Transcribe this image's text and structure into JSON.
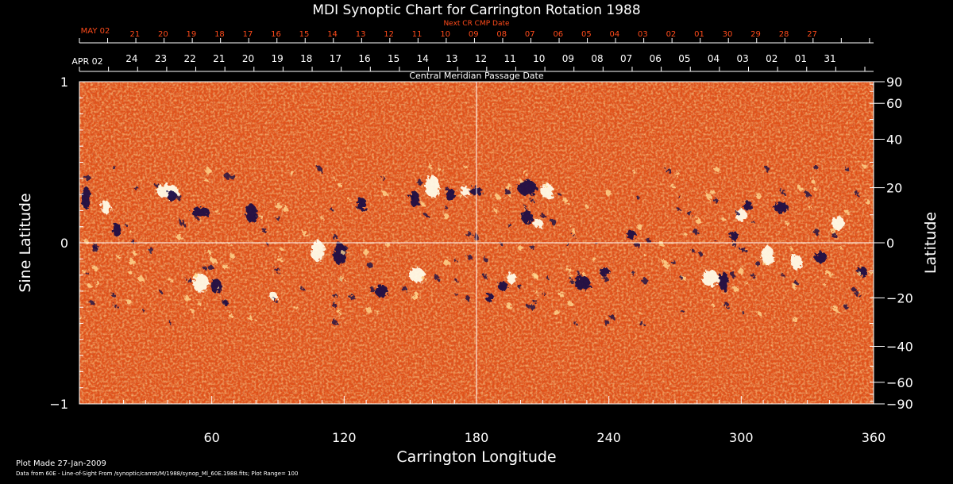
{
  "chart_data": {
    "type": "heatmap",
    "title": "MDI Synoptic Chart for Carrington Rotation 1988",
    "xlabel": "Carrington Longitude",
    "ylabel_left": "Sine Latitude",
    "ylabel_right": "Latitude",
    "xlim": [
      0,
      360
    ],
    "x_ticks": [
      60,
      120,
      180,
      240,
      300,
      360
    ],
    "ylim_left": [
      -1,
      1
    ],
    "y_ticks_left": [
      -1,
      0,
      1
    ],
    "y_ticks_right": [
      90,
      60,
      40,
      20,
      0,
      -20,
      -40,
      -60,
      -90
    ],
    "top_axis": {
      "label": "Central Meridian Passage Date",
      "start_label": "APR 02",
      "ticks": [
        "24",
        "23",
        "22",
        "21",
        "20",
        "19",
        "18",
        "17",
        "16",
        "15",
        "14",
        "13",
        "12",
        "11",
        "10",
        "09",
        "08",
        "07",
        "06",
        "05",
        "04",
        "03",
        "02",
        "01",
        "31"
      ]
    },
    "top_axis_next": {
      "label": "Next CR CMP Date",
      "start_label": "MAY 02",
      "ticks": [
        "21",
        "20",
        "19",
        "18",
        "17",
        "16",
        "15",
        "14",
        "13",
        "12",
        "11",
        "10",
        "09",
        "08",
        "07",
        "06",
        "05",
        "04",
        "03",
        "02",
        "01",
        "30",
        "29",
        "28",
        "27"
      ]
    },
    "grid_x": [
      180
    ],
    "grid_y": [
      0
    ],
    "colors": {
      "background": "#000000",
      "map_base": "#e85a18",
      "positive_polarity": "#ffffff",
      "negative_polarity": "#20104a",
      "next_cr_axis": "#ff4a1a"
    }
  },
  "footer": {
    "plot_made": "Plot Made 27-Jan-2009",
    "data_from": "Data from 60E - Line-of-Sight From /synoptic/carrot/M/1988/synop_Ml_60E.1988.fits; Plot Range=  100"
  }
}
